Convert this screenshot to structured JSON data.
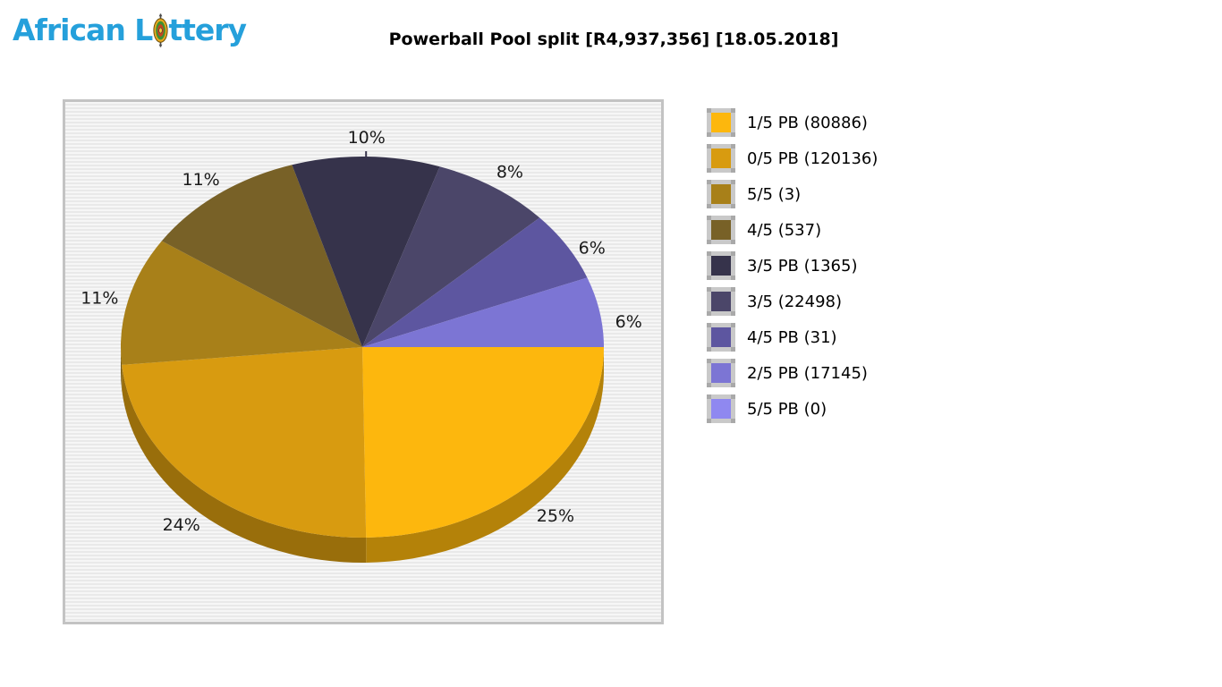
{
  "brand": {
    "name": "African Lottery",
    "before_icon": "African L",
    "after_icon": "ttery"
  },
  "title": "Powerball Pool split [R4,937,356] [18.05.2018]",
  "colors": {
    "logo_blue": "#25A0DB",
    "panel_border": "#C3C3C3",
    "panel_stripe_light": "#F6F6F6",
    "panel_stripe_dark": "#E9E9E9",
    "label_text": "#1A1A1A",
    "legend_frame": "#C9C9C9",
    "legend_frame_corner": "#A9A9A9"
  },
  "chart_data": {
    "type": "pie",
    "is_3d": true,
    "title": "Powerball Pool split [R4,937,356] [18.05.2018]",
    "start_angle": "east, clockwise",
    "legend_position": "right",
    "slices": [
      {
        "name": "1/5 PB",
        "winners": 80886,
        "percent": 25,
        "color": "#FDB70D",
        "legend_label": "1/5 PB (80886)"
      },
      {
        "name": "0/5 PB",
        "winners": 120136,
        "percent": 24,
        "color": "#D89B10",
        "legend_label": "0/5 PB (120136)"
      },
      {
        "name": "5/5",
        "winners": 3,
        "percent": 11,
        "color": "#A88019",
        "legend_label": "5/5 (3)"
      },
      {
        "name": "4/5",
        "winners": 537,
        "percent": 11,
        "color": "#786127",
        "legend_label": "4/5 (537)"
      },
      {
        "name": "3/5 PB",
        "winners": 1365,
        "percent": 10,
        "color": "#36334B",
        "legend_label": "3/5 PB (1365)"
      },
      {
        "name": "3/5",
        "winners": 22498,
        "percent": 8,
        "color": "#4B4669",
        "legend_label": "3/5 (22498)"
      },
      {
        "name": "4/5 PB",
        "winners": 31,
        "percent": 6,
        "color": "#5D56A0",
        "legend_label": "4/5 PB (31)"
      },
      {
        "name": "2/5 PB",
        "winners": 17145,
        "percent": 6,
        "color": "#7C75D4",
        "legend_label": "2/5 PB (17145)"
      },
      {
        "name": "5/5 PB",
        "winners": 0,
        "percent": 0,
        "color": "#8F88F0",
        "legend_label": "5/5 PB (0)"
      }
    ]
  }
}
